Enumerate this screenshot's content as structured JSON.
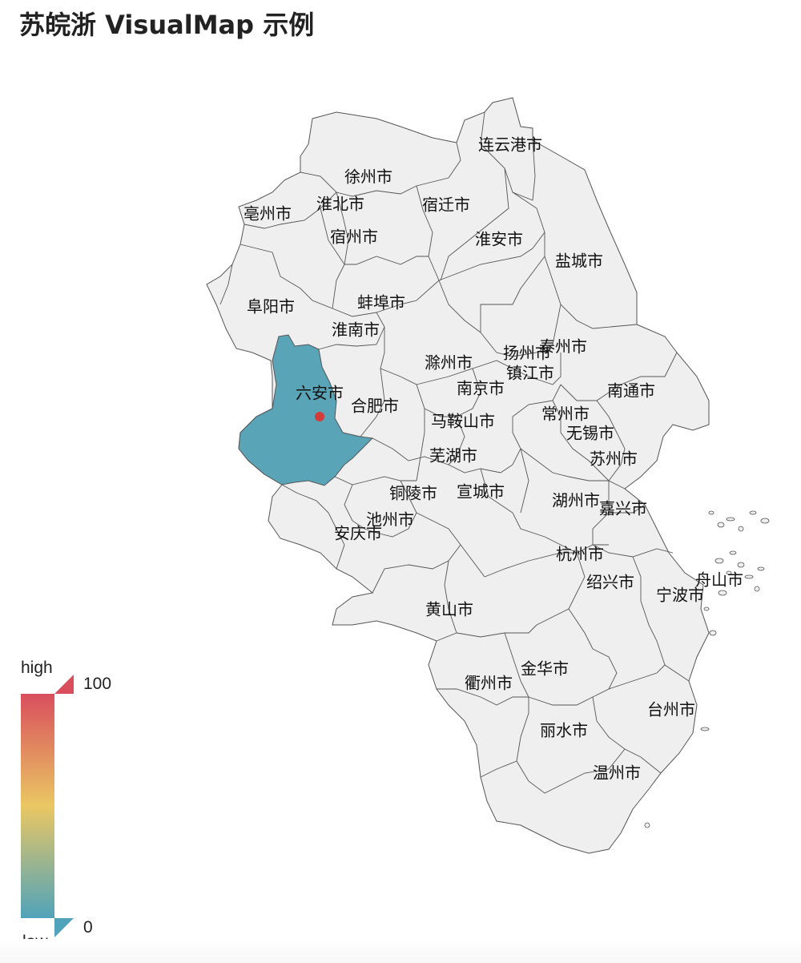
{
  "title": "苏皖浙 VisualMap 示例",
  "colors": {
    "region_fill": "#efefef",
    "region_stroke": "#555555",
    "highlight_fill": "#5aa4b8",
    "marker": "#d43c3c",
    "vm_high": "#d94e5d",
    "vm_mid": "#eac763",
    "vm_low": "#50a3ba"
  },
  "visual_map": {
    "high_label": "high",
    "low_label": "low",
    "max": "100",
    "min": "0"
  },
  "map": {
    "highlighted_city": "六安市",
    "marker_city": "六安市",
    "cities": [
      "连云港市",
      "徐州市",
      "淮北市",
      "亳州市",
      "宿迁市",
      "宿州市",
      "淮安市",
      "盐城市",
      "阜阳市",
      "蚌埠市",
      "淮南市",
      "泰州市",
      "扬州市",
      "滁州市",
      "镇江市",
      "南通市",
      "六安市",
      "南京市",
      "合肥市",
      "常州市",
      "马鞍山市",
      "无锡市",
      "芜湖市",
      "苏州市",
      "铜陵市",
      "宣城市",
      "湖州市",
      "嘉兴市",
      "池州市",
      "安庆市",
      "杭州市",
      "绍兴市",
      "舟山市",
      "宁波市",
      "黄山市",
      "金华市",
      "衢州市",
      "台州市",
      "丽水市",
      "温州市"
    ]
  }
}
